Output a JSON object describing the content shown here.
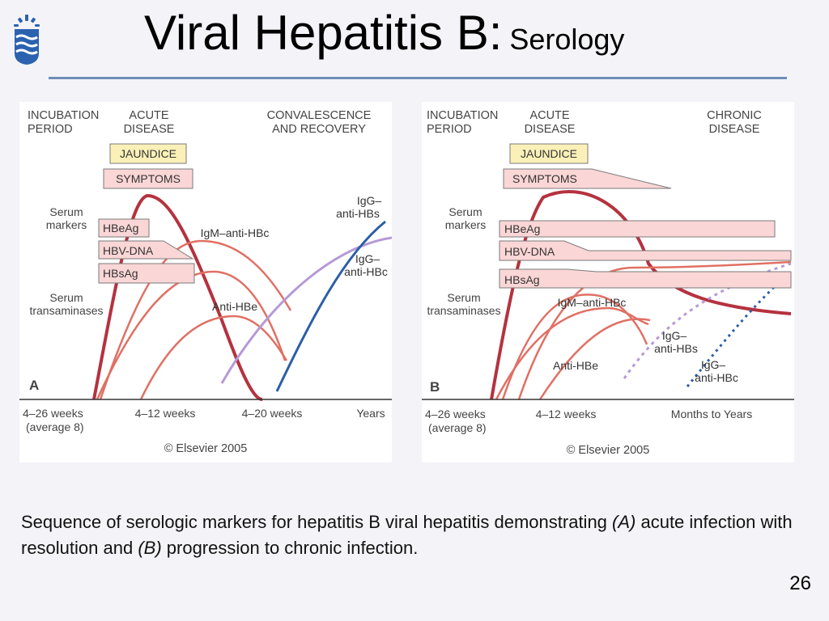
{
  "slide": {
    "title_main": "Viral Hepatitis B:",
    "title_sub": "Serology",
    "caption_part1": "Sequence of serologic markers for hepatitis B viral hepatitis demonstrating ",
    "caption_a": "(A)",
    "caption_part2": " acute infection with resolution and ",
    "caption_b": "(B)",
    "caption_part3": " progression to chronic infection.",
    "page_number": "26"
  },
  "colors": {
    "accent_rule": "#6e8db8",
    "dark_red": "#b5323f",
    "light_red": "#e07064",
    "purple": "#b59ad6",
    "blue": "#2c5ea8",
    "box_fill": "#fbd6d6",
    "jaundice_fill": "#fbf1b8"
  },
  "panel_a": {
    "phase1_line1": "INCUBATION",
    "phase1_line2": "PERIOD",
    "phase2_line1": "ACUTE",
    "phase2_line2": "DISEASE",
    "phase3_line1": "CONVALESCENCE",
    "phase3_line2": "AND RECOVERY",
    "jaundice": "JAUNDICE",
    "symptoms": "SYMPTOMS",
    "serum_markers_1": "Serum",
    "serum_markers_2": "markers",
    "serum_trans_1": "Serum",
    "serum_trans_2": "transaminases",
    "box_hbeag": "HBeAg",
    "box_hbvdna": "HBV-DNA",
    "box_hbsag": "HBsAg",
    "curve_igm": "IgM–anti-HBc",
    "curve_igg_hbs_1": "IgG–",
    "curve_igg_hbs_2": "anti-HBs",
    "curve_igg_hbc_1": "IgG–",
    "curve_igg_hbc_2": "anti-HBc",
    "curve_antihbe": "Anti-HBe",
    "panel_letter": "A",
    "axis_1a": "4–26 weeks",
    "axis_1b": "(average 8)",
    "axis_2": "4–12 weeks",
    "axis_3": "4–20 weeks",
    "axis_4": "Years",
    "copyright": "© Elsevier 2005"
  },
  "panel_b": {
    "phase1_line1": "INCUBATION",
    "phase1_line2": "PERIOD",
    "phase2_line1": "ACUTE",
    "phase2_line2": "DISEASE",
    "phase3_line1": "CHRONIC",
    "phase3_line2": "DISEASE",
    "jaundice": "JAUNDICE",
    "symptoms": "SYMPTOMS",
    "serum_markers_1": "Serum",
    "serum_markers_2": "markers",
    "serum_trans_1": "Serum",
    "serum_trans_2": "transaminases",
    "box_hbeag": "HBeAg",
    "box_hbvdna": "HBV-DNA",
    "box_hbsag": "HBsAg",
    "curve_igm": "IgM–anti-HBc",
    "curve_igg_hbs_1": "IgG–",
    "curve_igg_hbs_2": "anti-HBs",
    "curve_igg_hbc_1": "IgG–",
    "curve_igg_hbc_2": "anti-HBc",
    "curve_antihbe": "Anti-HBe",
    "panel_letter": "B",
    "axis_1a": "4–26 weeks",
    "axis_1b": "(average 8)",
    "axis_2": "4–12 weeks",
    "axis_3": "Months to Years",
    "copyright": "© Elsevier 2005"
  }
}
